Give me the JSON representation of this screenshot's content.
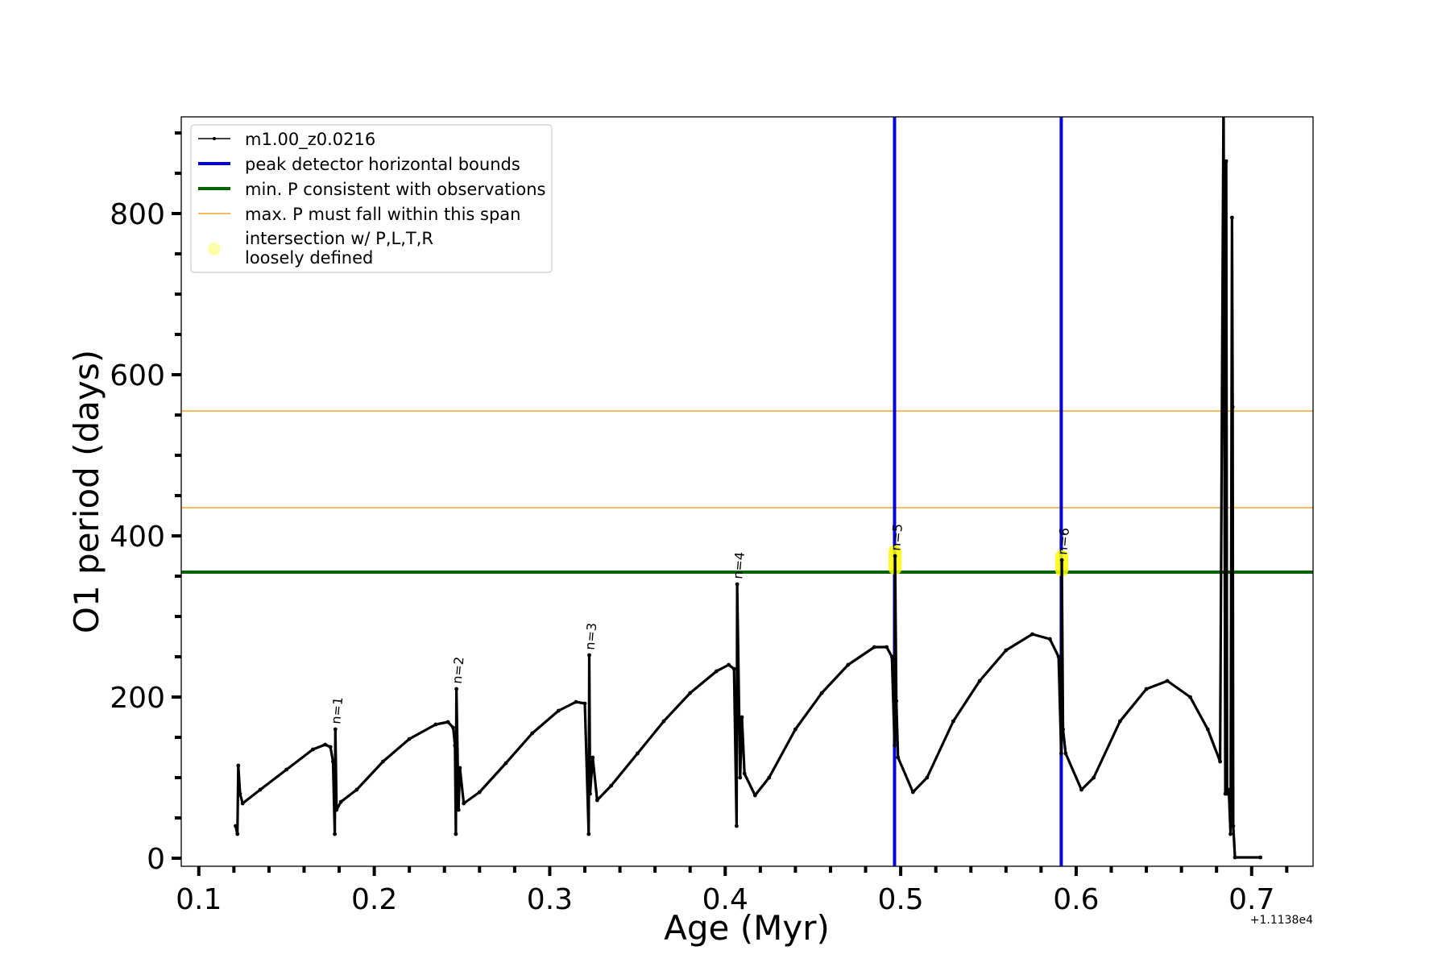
{
  "chart_data": {
    "type": "line",
    "xlabel": "Age (Myr)",
    "ylabel": "O1 period (days)",
    "x_offset_label": "+1.1138e4",
    "xlim": [
      0.09,
      0.735
    ],
    "ylim": [
      -10,
      920
    ],
    "x_ticks": [
      0.1,
      0.2,
      0.3,
      0.4,
      0.5,
      0.6,
      0.7
    ],
    "x_tick_labels": [
      "0.1",
      "0.2",
      "0.3",
      "0.4",
      "0.5",
      "0.6",
      "0.7"
    ],
    "y_ticks": [
      0,
      200,
      400,
      600,
      800
    ],
    "y_tick_labels": [
      "0",
      "200",
      "400",
      "600",
      "800"
    ],
    "grid": false,
    "legend_position": "top-left",
    "series": [
      {
        "name": "m1.00_z0.0216",
        "color": "#000000",
        "points": [
          [
            0.121,
            40
          ],
          [
            0.122,
            30
          ],
          [
            0.1225,
            115
          ],
          [
            0.1235,
            80
          ],
          [
            0.125,
            68
          ],
          [
            0.135,
            85
          ],
          [
            0.15,
            110
          ],
          [
            0.165,
            135
          ],
          [
            0.172,
            141
          ],
          [
            0.175,
            138
          ],
          [
            0.1765,
            120
          ],
          [
            0.1775,
            30
          ],
          [
            0.1778,
            160
          ],
          [
            0.1785,
            60
          ],
          [
            0.181,
            70
          ],
          [
            0.19,
            85
          ],
          [
            0.205,
            120
          ],
          [
            0.22,
            148
          ],
          [
            0.235,
            166
          ],
          [
            0.242,
            169
          ],
          [
            0.245,
            162
          ],
          [
            0.246,
            140
          ],
          [
            0.2465,
            30
          ],
          [
            0.2468,
            210
          ],
          [
            0.248,
            60
          ],
          [
            0.2488,
            112
          ],
          [
            0.251,
            68
          ],
          [
            0.26,
            82
          ],
          [
            0.275,
            118
          ],
          [
            0.29,
            155
          ],
          [
            0.305,
            183
          ],
          [
            0.315,
            194
          ],
          [
            0.32,
            192
          ],
          [
            0.3222,
            30
          ],
          [
            0.3225,
            252
          ],
          [
            0.323,
            80
          ],
          [
            0.3245,
            125
          ],
          [
            0.327,
            72
          ],
          [
            0.335,
            90
          ],
          [
            0.35,
            130
          ],
          [
            0.365,
            170
          ],
          [
            0.38,
            205
          ],
          [
            0.395,
            232
          ],
          [
            0.402,
            240
          ],
          [
            0.405,
            235
          ],
          [
            0.4065,
            40
          ],
          [
            0.4068,
            340
          ],
          [
            0.4085,
            100
          ],
          [
            0.4095,
            175
          ],
          [
            0.411,
            105
          ],
          [
            0.417,
            78
          ],
          [
            0.425,
            100
          ],
          [
            0.44,
            160
          ],
          [
            0.455,
            205
          ],
          [
            0.47,
            240
          ],
          [
            0.485,
            262
          ],
          [
            0.492,
            262
          ],
          [
            0.495,
            250
          ],
          [
            0.4965,
            140
          ],
          [
            0.4968,
            375
          ],
          [
            0.4975,
            195
          ],
          [
            0.4985,
            125
          ],
          [
            0.507,
            82
          ],
          [
            0.515,
            100
          ],
          [
            0.53,
            170
          ],
          [
            0.545,
            220
          ],
          [
            0.56,
            258
          ],
          [
            0.575,
            278
          ],
          [
            0.585,
            272
          ],
          [
            0.59,
            250
          ],
          [
            0.5915,
            130
          ],
          [
            0.5918,
            370
          ],
          [
            0.5925,
            160
          ],
          [
            0.594,
            130
          ],
          [
            0.603,
            85
          ],
          [
            0.61,
            100
          ],
          [
            0.625,
            170
          ],
          [
            0.64,
            210
          ],
          [
            0.652,
            220
          ],
          [
            0.665,
            200
          ],
          [
            0.675,
            160
          ],
          [
            0.682,
            120
          ],
          [
            0.684,
            950
          ],
          [
            0.685,
            80
          ],
          [
            0.6855,
            865
          ],
          [
            0.686,
            80
          ],
          [
            0.687,
            85
          ],
          [
            0.688,
            30
          ],
          [
            0.6888,
            795
          ],
          [
            0.6892,
            560
          ],
          [
            0.6895,
            40
          ],
          [
            0.6905,
            1
          ],
          [
            0.705,
            1
          ]
        ]
      }
    ],
    "vertical_lines": [
      {
        "name": "peak detector horizontal bounds",
        "x": 0.4965,
        "color": "#0000dd"
      },
      {
        "name": "peak detector horizontal bounds",
        "x": 0.5915,
        "color": "#0000dd"
      }
    ],
    "horizontal_lines": [
      {
        "name": "min. P consistent with observations",
        "y": 355,
        "color": "#006400"
      },
      {
        "name": "max. P must fall within this span",
        "y": 435,
        "color": "#f5a623"
      },
      {
        "name": "max. P must fall within this span",
        "y": 555,
        "color": "#f5a623"
      }
    ],
    "highlights": [
      {
        "name": "intersection w/ P,L,T,R loosely defined",
        "x": 0.4968,
        "y_low": 352,
        "y_high": 388,
        "color": "#ffff00"
      },
      {
        "name": "intersection w/ P,L,T,R loosely defined",
        "x": 0.5918,
        "y_low": 350,
        "y_high": 382,
        "color": "#ffff00"
      }
    ],
    "annotations": [
      {
        "text": "n=1",
        "x": 0.1778,
        "y": 160
      },
      {
        "text": "n=2",
        "x": 0.2468,
        "y": 210
      },
      {
        "text": "n=3",
        "x": 0.3225,
        "y": 252
      },
      {
        "text": "n=4",
        "x": 0.4068,
        "y": 340
      },
      {
        "text": "n=5",
        "x": 0.4968,
        "y": 375
      },
      {
        "text": "n=6",
        "x": 0.5918,
        "y": 370
      }
    ],
    "legend": [
      {
        "label": "m1.00_z0.0216",
        "style": "line-dot",
        "color": "#000000"
      },
      {
        "label": "peak detector horizontal bounds",
        "style": "thick-line",
        "color": "#0000dd"
      },
      {
        "label": "min. P consistent with observations",
        "style": "thick-line",
        "color": "#006400"
      },
      {
        "label": "max. P must fall within this span",
        "style": "thin-line",
        "color": "#f5a623"
      },
      {
        "label_line1": "intersection w/ P,L,T,R",
        "label_line2": "loosely defined",
        "style": "marker",
        "color": "#ffffaa"
      }
    ]
  }
}
